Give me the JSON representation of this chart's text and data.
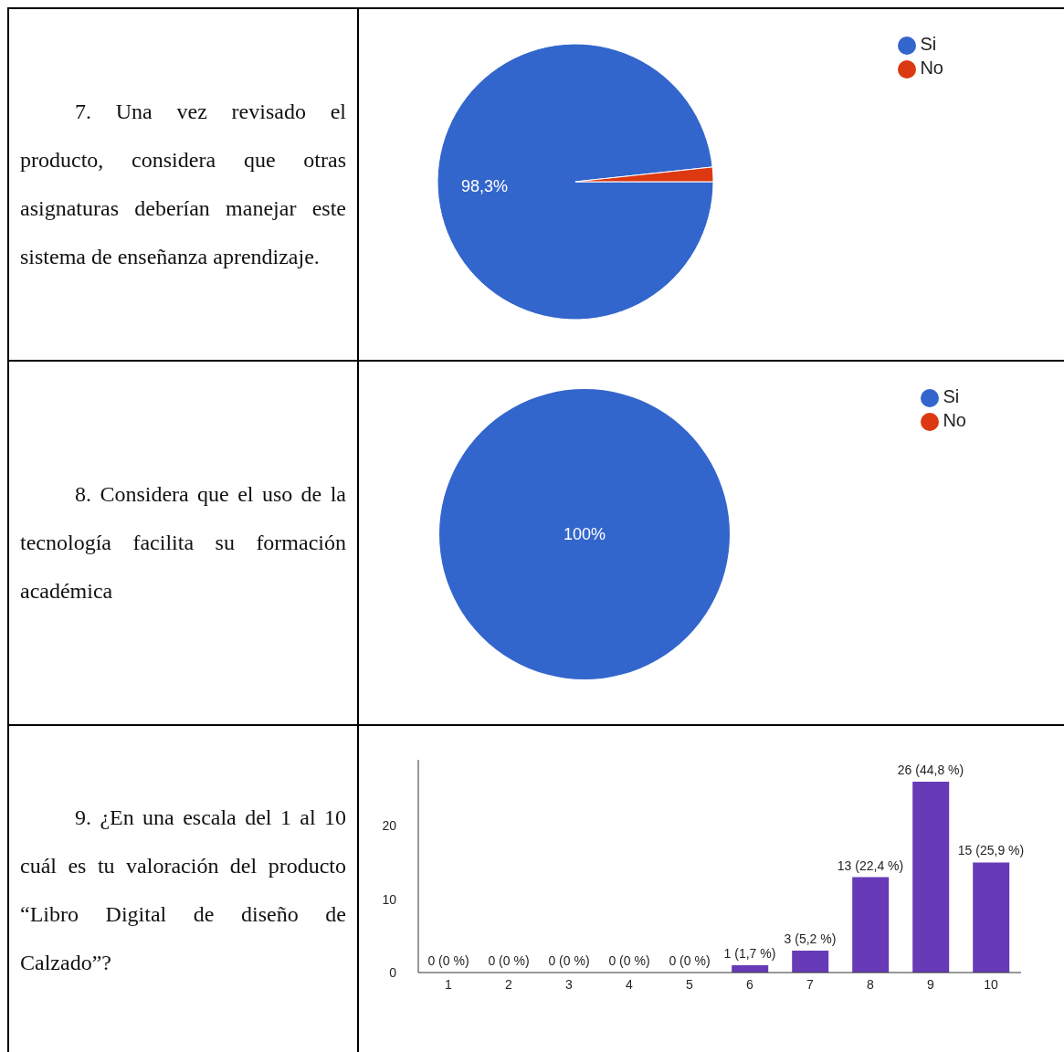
{
  "chart_data": [
    {
      "type": "pie",
      "title": "7. Una vez revisado el producto, considera que otras asignaturas deberían manejar este sistema de enseñanza aprendizaje.",
      "categories": [
        "Si",
        "No"
      ],
      "values": [
        98.3,
        1.7
      ],
      "colors": [
        "#3366cc",
        "#dc3912"
      ],
      "value_labels": [
        "98,3%",
        null
      ],
      "legend": "top right"
    },
    {
      "type": "pie",
      "title": "8. Considera que el uso de la tecnología facilita su formación académica",
      "categories": [
        "Si",
        "No"
      ],
      "values": [
        100,
        0
      ],
      "colors": [
        "#3366cc",
        "#dc3912"
      ],
      "value_labels": [
        "100%",
        null
      ],
      "legend": "top right"
    },
    {
      "type": "bar",
      "title": "9. ¿En una escala del 1 al 10 cuál es tu valoración del producto “Libro Digital de diseño de Calzado”?",
      "categories": [
        "1",
        "2",
        "3",
        "4",
        "5",
        "6",
        "7",
        "8",
        "9",
        "10"
      ],
      "values": [
        0,
        0,
        0,
        0,
        0,
        1,
        3,
        13,
        26,
        15
      ],
      "color": "#673ab7",
      "ylim": [
        0,
        29
      ],
      "yticks": [
        0,
        10,
        20
      ],
      "value_labels": [
        "0 (0 %)",
        "0 (0 %)",
        "0 (0 %)",
        "0 (0 %)",
        "0 (0 %)",
        "1 (1,7 %)",
        "3 (5,2 %)",
        "13 (22,4 %)",
        "26 (44,8 %)",
        "15 (25,9 %)"
      ]
    }
  ]
}
